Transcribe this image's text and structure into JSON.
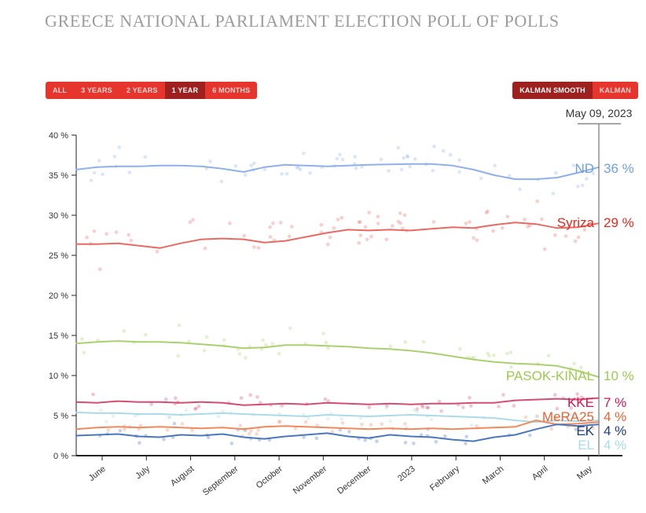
{
  "title": "GREECE NATIONAL PARLIAMENT ELECTION POLL OF POLLS",
  "range_selector": {
    "options": [
      "ALL",
      "3 YEARS",
      "2 YEARS",
      "1 YEAR",
      "6 MONTHS"
    ],
    "active": "1 YEAR"
  },
  "smoothing_selector": {
    "options": [
      "KALMAN SMOOTH",
      "KALMAN"
    ],
    "active": "KALMAN SMOOTH"
  },
  "cursor_date": "May 09, 2023",
  "colors": {
    "button_base": "#e5352c",
    "button_active": "#9e2120",
    "title_gray": "#9c9c9c",
    "axis": "#333333",
    "cursor_line": "#888888"
  },
  "chart_data": {
    "type": "line",
    "title": "",
    "xlabel": "",
    "ylabel": "",
    "ylim": [
      0,
      40
    ],
    "grid": false,
    "y_tick_labels": [
      "0 %",
      "5 %",
      "10 %",
      "15 %",
      "20 %",
      "25 %",
      "30 %",
      "35 %",
      "40 %"
    ],
    "y_tick_values": [
      0,
      5,
      10,
      15,
      20,
      25,
      30,
      35,
      40
    ],
    "x_tick_labels": [
      "June",
      "July",
      "August",
      "September",
      "October",
      "November",
      "December",
      "2023",
      "February",
      "March",
      "April",
      "May"
    ],
    "cursor_date": "May 09, 2023",
    "legend_position": "right-edge-labels",
    "series": [
      {
        "name": "ND",
        "label_value": "36 %",
        "end_value": 36,
        "color": "#8fb0ea",
        "label_color": "#6f9ee8",
        "scatter_points": 62,
        "scatter_jitter": 1.1,
        "values": [
          35.7,
          36.0,
          36.1,
          36.1,
          36.2,
          36.2,
          36.1,
          35.8,
          35.4,
          36.0,
          36.3,
          36.2,
          36.1,
          36.2,
          36.3,
          36.35,
          36.4,
          36.4,
          36.2,
          35.7,
          35.0,
          34.5,
          34.5,
          34.7,
          35.3,
          36.0
        ]
      },
      {
        "name": "Syriza",
        "label_value": "29 %",
        "end_value": 29,
        "color": "#e96a62",
        "label_color": "#e8271b",
        "scatter_points": 70,
        "scatter_jitter": 1.3,
        "values": [
          26.4,
          26.4,
          26.5,
          26.2,
          25.9,
          26.5,
          27.0,
          27.1,
          27.0,
          26.6,
          26.8,
          27.3,
          27.8,
          28.2,
          28.1,
          28.2,
          28.1,
          28.3,
          28.5,
          28.4,
          28.8,
          29.1,
          28.9,
          28.4,
          28.5,
          29.0
        ]
      },
      {
        "name": "PASOK-KINAL",
        "label_value": "10 %",
        "end_value": 10,
        "color": "#abd06e",
        "label_color": "#9ccb4e",
        "scatter_points": 48,
        "scatter_jitter": 0.9,
        "values": [
          14.0,
          14.2,
          14.3,
          14.2,
          14.2,
          14.1,
          13.9,
          13.7,
          13.4,
          13.5,
          13.8,
          13.8,
          13.7,
          13.6,
          13.4,
          13.3,
          13.1,
          12.8,
          12.4,
          12.0,
          11.7,
          11.5,
          11.4,
          11.2,
          10.6,
          9.8
        ]
      },
      {
        "name": "KKE",
        "label_value": "7 %",
        "end_value": 7,
        "color": "#d44d72",
        "label_color": "#d5164e",
        "scatter_points": 42,
        "scatter_jitter": 0.55,
        "values": [
          6.7,
          6.6,
          6.8,
          6.7,
          6.7,
          6.6,
          6.7,
          6.6,
          6.3,
          6.4,
          6.5,
          6.4,
          6.6,
          6.5,
          6.4,
          6.5,
          6.4,
          6.5,
          6.5,
          6.6,
          6.6,
          6.9,
          7.0,
          7.1,
          7.0,
          7.2
        ]
      },
      {
        "name": "MeRA25",
        "label_value": "4 %",
        "end_value": 4,
        "color": "#f08a5c",
        "label_color": "#e96233",
        "scatter_points": 38,
        "scatter_jitter": 0.6,
        "values": [
          3.3,
          3.5,
          3.6,
          3.5,
          3.6,
          3.5,
          3.4,
          3.5,
          3.3,
          3.6,
          3.7,
          3.6,
          3.5,
          3.4,
          3.3,
          3.4,
          3.3,
          3.4,
          3.3,
          3.4,
          3.5,
          3.6,
          4.4,
          3.9,
          4.0,
          4.2
        ]
      },
      {
        "name": "EK",
        "label_value": "4 %",
        "end_value": 4,
        "color": "#4a77bd",
        "label_color": "#1b3e80",
        "scatter_points": 38,
        "scatter_jitter": 0.55,
        "values": [
          2.5,
          2.6,
          2.7,
          2.4,
          2.3,
          2.6,
          2.5,
          2.7,
          2.3,
          2.1,
          2.4,
          2.6,
          2.8,
          2.4,
          2.2,
          2.6,
          2.4,
          2.3,
          2.0,
          1.8,
          2.3,
          2.6,
          3.3,
          3.9,
          3.7,
          3.9
        ]
      },
      {
        "name": "EL",
        "label_value": "4 %",
        "end_value": 4,
        "color": "#aadbe8",
        "label_color": "#a8dcec",
        "scatter_points": 30,
        "scatter_jitter": 0.5,
        "values": [
          5.4,
          5.3,
          5.3,
          5.2,
          5.2,
          5.1,
          5.2,
          5.3,
          5.2,
          5.1,
          5.0,
          4.9,
          5.1,
          5.0,
          4.9,
          5.0,
          5.1,
          5.0,
          4.9,
          4.8,
          4.7,
          4.4,
          4.2,
          4.4,
          4.3,
          4.4
        ]
      }
    ]
  }
}
